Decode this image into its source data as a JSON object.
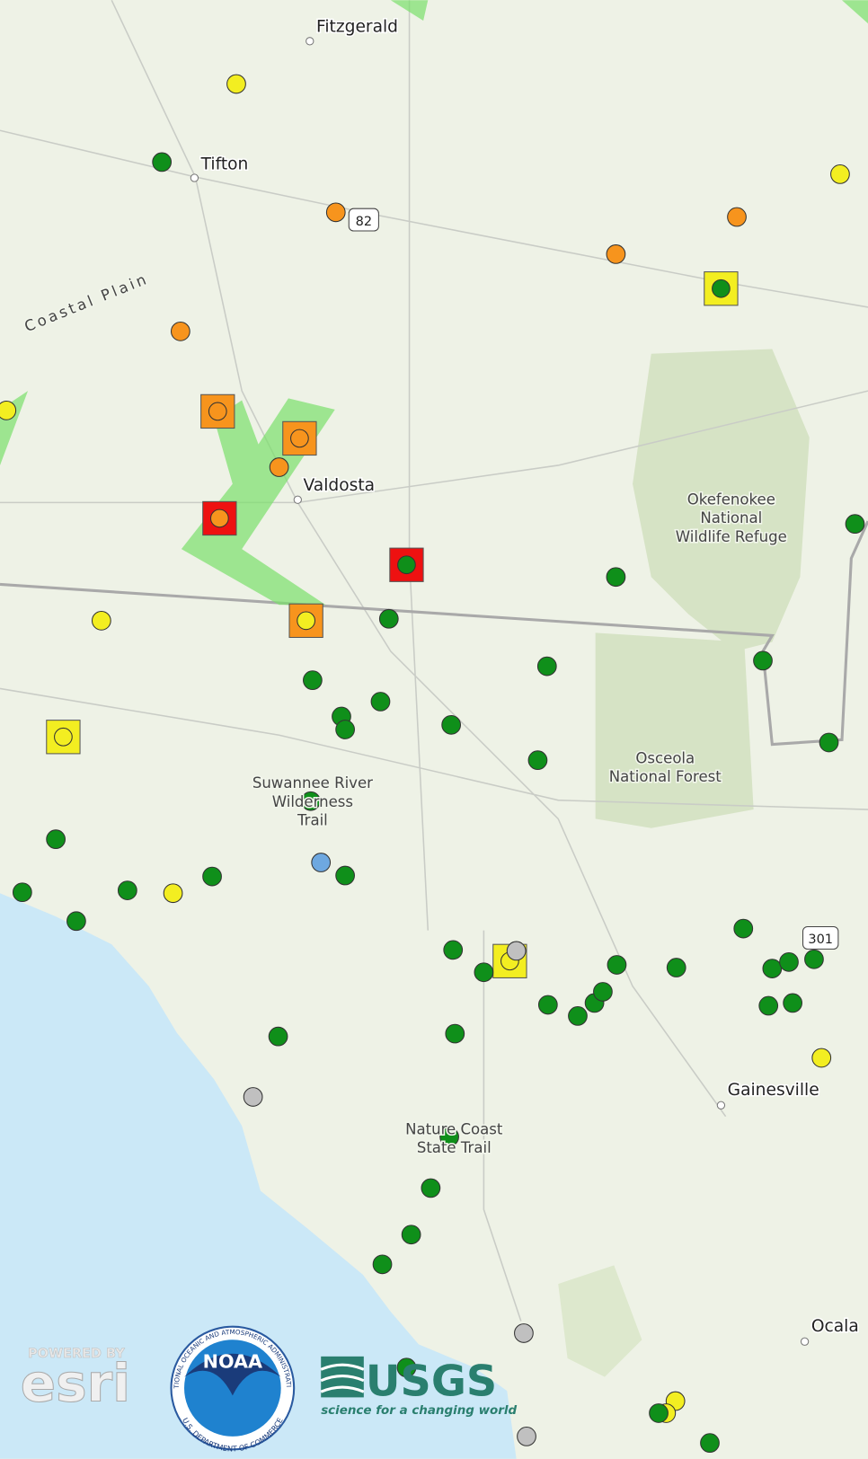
{
  "places": [
    {
      "name": "Fitzgerald"
    },
    {
      "name": "Tifton"
    },
    {
      "name": "Coastal Plain"
    },
    {
      "name": "Valdosta"
    },
    {
      "name": "Okefenokee National Wildlife Refuge",
      "lines": [
        "Okefenokee",
        "National",
        "Wildlife Refuge"
      ]
    },
    {
      "name": "Osceola National Forest",
      "lines": [
        "Osceola",
        "National Forest"
      ]
    },
    {
      "name": "Suwannee River Wilderness Trail",
      "lines": [
        "Suwannee River",
        "Wilderness",
        "Trail"
      ]
    },
    {
      "name": "Gainesville"
    },
    {
      "name": "Nature Coast State Trail",
      "lines": [
        "Nature Coast",
        "State Trail"
      ]
    },
    {
      "name": "Ocala"
    }
  ],
  "highways": [
    "82",
    "301"
  ],
  "logos": {
    "esri_tagline": "POWERED BY",
    "esri": "esri",
    "noaa": "NOAA",
    "noaa_ring_top": "NATIONAL OCEANIC AND ATMOSPHERIC ADMINISTRATION",
    "noaa_ring_bottom": "U.S. DEPARTMENT OF COMMERCE",
    "usgs": "USGS",
    "usgs_tagline": "science for a changing world"
  }
}
